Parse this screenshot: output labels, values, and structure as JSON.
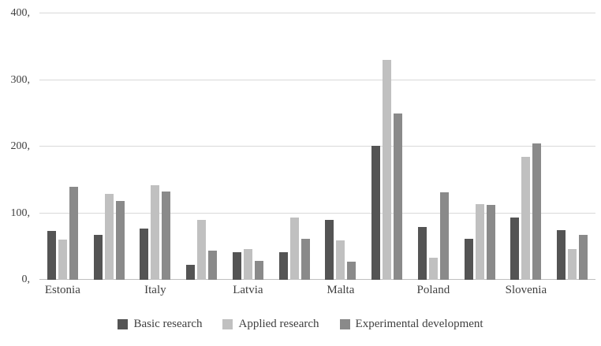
{
  "chart_data": {
    "type": "bar",
    "title": "",
    "xlabel": "",
    "ylabel": "",
    "ylim": [
      0,
      400
    ],
    "grid": true,
    "legend_position": "bottom",
    "y_ticks": [
      {
        "value": 0,
        "label": "0,"
      },
      {
        "value": 100,
        "label": "100,"
      },
      {
        "value": 200,
        "label": "200,"
      },
      {
        "value": 300,
        "label": "300,"
      },
      {
        "value": 400,
        "label": "400,"
      }
    ],
    "categories": [
      "Estonia",
      "",
      "Italy",
      "",
      "Latvia",
      "",
      "Malta",
      "",
      "Poland",
      "",
      "Slovenia",
      ""
    ],
    "series": [
      {
        "name": "Basic research",
        "color": "#545454",
        "values": [
          73,
          67,
          77,
          23,
          41,
          42,
          90,
          201,
          79,
          62,
          94,
          75
        ]
      },
      {
        "name": "Applied research",
        "color": "#c0c0c0",
        "values": [
          60,
          129,
          142,
          90,
          46,
          94,
          59,
          330,
          33,
          114,
          185,
          46
        ]
      },
      {
        "name": "Experimental development",
        "color": "#8a8a8a",
        "values": [
          140,
          118,
          132,
          44,
          28,
          61,
          27,
          250,
          131,
          112,
          205,
          67
        ]
      }
    ],
    "colors": {
      "background": "#ffffff",
      "gridline": "#d9d9d9",
      "axis_text": "#404040"
    }
  }
}
